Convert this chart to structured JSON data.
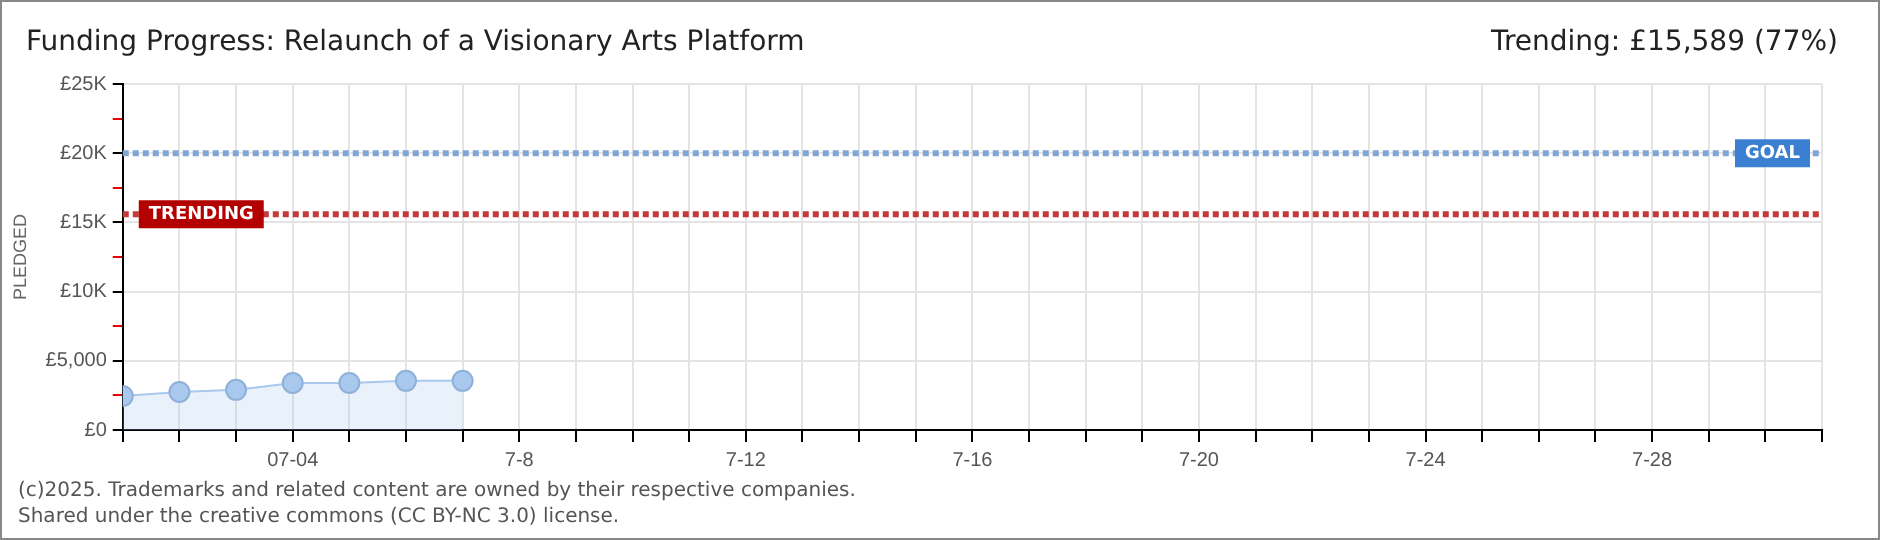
{
  "chart_data": {
    "type": "area",
    "title": "Funding Progress: Relaunch of a Visionary Arts Platform",
    "subtitle": "Trending: £15,589 (77%)",
    "ylabel": "PLEDGED",
    "x": [
      "2025-07-01",
      "2025-07-02",
      "2025-07-03",
      "2025-07-04",
      "2025-07-05",
      "2025-07-06",
      "2025-07-07"
    ],
    "series": [
      {
        "color": "#a9c8ee",
        "values": [
          2450,
          2750,
          2900,
          3400,
          3400,
          3550,
          3550
        ]
      }
    ],
    "xlim": [
      "2025-07-01",
      "2025-07-31"
    ],
    "xticks": [
      {
        "value": "2025-07-01",
        "label": null
      },
      {
        "value": "2025-07-02",
        "label": null
      },
      {
        "value": "2025-07-03",
        "label": null
      },
      {
        "value": "2025-07-04",
        "label": "07-04"
      },
      {
        "value": "2025-07-05",
        "label": null
      },
      {
        "value": "2025-07-06",
        "label": null
      },
      {
        "value": "2025-07-07",
        "label": null
      },
      {
        "value": "2025-07-08",
        "label": "7-8"
      },
      {
        "value": "2025-07-09",
        "label": null
      },
      {
        "value": "2025-07-10",
        "label": null
      },
      {
        "value": "2025-07-11",
        "label": null
      },
      {
        "value": "2025-07-12",
        "label": "7-12"
      },
      {
        "value": "2025-07-13",
        "label": null
      },
      {
        "value": "2025-07-14",
        "label": null
      },
      {
        "value": "2025-07-15",
        "label": null
      },
      {
        "value": "2025-07-16",
        "label": "7-16"
      },
      {
        "value": "2025-07-17",
        "label": null
      },
      {
        "value": "2025-07-18",
        "label": null
      },
      {
        "value": "2025-07-19",
        "label": null
      },
      {
        "value": "2025-07-20",
        "label": "7-20"
      },
      {
        "value": "2025-07-21",
        "label": null
      },
      {
        "value": "2025-07-22",
        "label": null
      },
      {
        "value": "2025-07-23",
        "label": null
      },
      {
        "value": "2025-07-24",
        "label": "7-24"
      },
      {
        "value": "2025-07-25",
        "label": null
      },
      {
        "value": "2025-07-26",
        "label": null
      },
      {
        "value": "2025-07-27",
        "label": null
      },
      {
        "value": "2025-07-28",
        "label": "7-28"
      },
      {
        "value": "2025-07-29",
        "label": null
      },
      {
        "value": "2025-07-30",
        "label": null
      },
      {
        "value": "2025-07-31",
        "label": null
      }
    ],
    "ylim": [
      0,
      25000
    ],
    "yticks": [
      {
        "value": 0,
        "label": "£0"
      },
      {
        "value": 2500,
        "label": null
      },
      {
        "value": 5000,
        "label": "£5,000"
      },
      {
        "value": 7500,
        "label": null
      },
      {
        "value": 10000,
        "label": "£10K"
      },
      {
        "value": 12500,
        "label": null
      },
      {
        "value": 15000,
        "label": "£15K"
      },
      {
        "value": 17500,
        "label": null
      },
      {
        "value": 20000,
        "label": "£20K"
      },
      {
        "value": 22500,
        "label": null
      },
      {
        "value": 25000,
        "label": "£25K"
      }
    ],
    "ref_lines": [
      {
        "axis": "y",
        "value": 20000,
        "label": "GOAL",
        "color": "#7fa6d6",
        "line_style": "dotted"
      },
      {
        "axis": "y",
        "value": 15589,
        "label": "TRENDING",
        "color": "#c43a3a",
        "line_style": "dotted"
      }
    ],
    "grid": true,
    "marker": "circle",
    "legend": false,
    "annotations": [
      "(c)2025. Trademarks and related content are owned by their respective companies.",
      "Shared under the creative commons (CC BY-NC 3.0) license."
    ]
  }
}
